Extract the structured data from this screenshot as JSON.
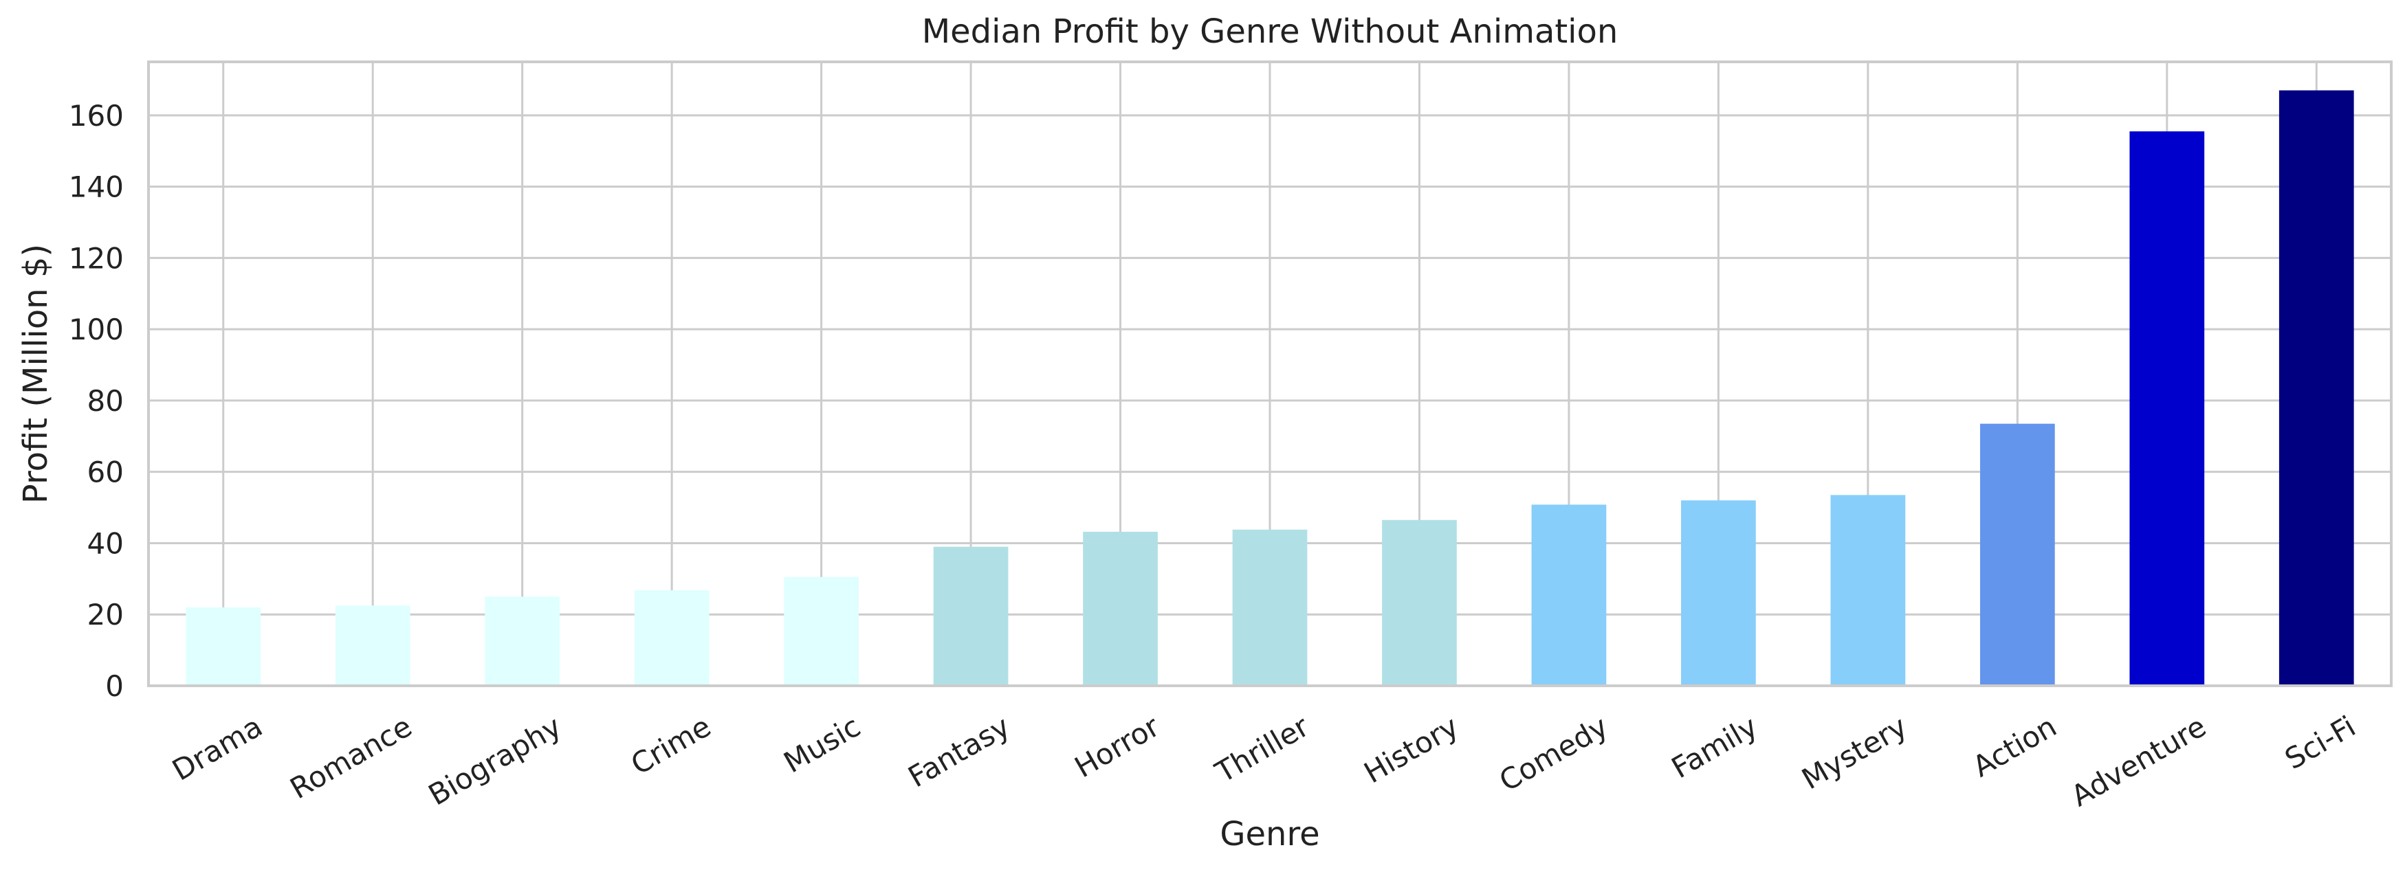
{
  "chart_data": {
    "type": "bar",
    "title": "Median Profit by Genre Without Animation",
    "xlabel": "Genre",
    "ylabel": "Profit (Million $)",
    "ylim": [
      0,
      175
    ],
    "yticks": [
      0,
      20,
      40,
      60,
      80,
      100,
      120,
      140,
      160
    ],
    "grid": true,
    "categories": [
      "Drama",
      "Romance",
      "Biography",
      "Crime",
      "Music",
      "Fantasy",
      "Horror",
      "Thriller",
      "History",
      "Comedy",
      "Family",
      "Mystery",
      "Action",
      "Adventure",
      "Sci-Fi"
    ],
    "values": [
      22,
      22.5,
      25,
      26.8,
      30.5,
      39,
      43.2,
      43.8,
      46.5,
      50.8,
      52,
      53.5,
      73.5,
      155.5,
      167
    ],
    "colors": [
      "#e0ffff",
      "#e0ffff",
      "#e0ffff",
      "#e0ffff",
      "#e0ffff",
      "#b0e0e6",
      "#b0e0e6",
      "#b0e0e6",
      "#b0e0e6",
      "#87cefa",
      "#87cefa",
      "#87cefa",
      "#6495ed",
      "#0000cd",
      "#000080"
    ]
  }
}
